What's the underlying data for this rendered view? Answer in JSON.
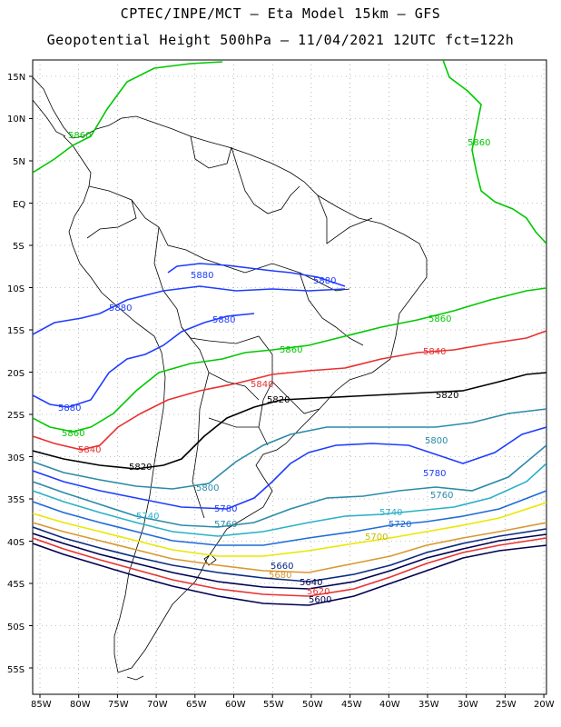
{
  "header": {
    "line1": "CPTEC/INPE/MCT –  Eta Model 15km – GFS",
    "line2": "Geopotential Height 500hPa – 11/04/2021 12UTC fct=122h"
  },
  "map": {
    "lat_labels": [
      "15N",
      "10N",
      "5N",
      "EQ",
      "5S",
      "10S",
      "15S",
      "20S",
      "25S",
      "30S",
      "35S",
      "40S",
      "45S",
      "50S",
      "55S"
    ],
    "lon_labels": [
      "85W",
      "80W",
      "75W",
      "70W",
      "65W",
      "60W",
      "55W",
      "50W",
      "45W",
      "40W",
      "35W",
      "30W",
      "25W",
      "20W"
    ],
    "grid": "dotted",
    "contour_colors": {
      "5880": "#1e3cff",
      "5860": "#00c800",
      "5840": "#e83030",
      "5820": "#000000",
      "5800": "#2a8aa8",
      "5780": "#1e3cff",
      "5760": "#2a8aa8",
      "5740": "#2ab0c8",
      "5720": "#1e6ad8",
      "5700": "#e8e800",
      "5680": "#d89830",
      "5660": "#0a2a80",
      "5640": "#000050",
      "5620": "#e83030",
      "5600": "#000050"
    },
    "contour_labels": [
      {
        "text": "5860",
        "value": 5860
      },
      {
        "text": "5860",
        "value": 5860
      },
      {
        "text": "5880",
        "value": 5880
      },
      {
        "text": "5880",
        "value": 5880
      },
      {
        "text": "5880",
        "value": 5880
      },
      {
        "text": "5880",
        "value": 5880
      },
      {
        "text": "5880",
        "value": 5880
      },
      {
        "text": "5860",
        "value": 5860
      },
      {
        "text": "5860",
        "value": 5860
      },
      {
        "text": "5860",
        "value": 5860
      },
      {
        "text": "5840",
        "value": 5840
      },
      {
        "text": "5840",
        "value": 5840
      },
      {
        "text": "5840",
        "value": 5840
      },
      {
        "text": "5820",
        "value": 5820
      },
      {
        "text": "5820",
        "value": 5820
      },
      {
        "text": "5820",
        "value": 5820
      },
      {
        "text": "5800",
        "value": 5800
      },
      {
        "text": "5800",
        "value": 5800
      },
      {
        "text": "5780",
        "value": 5780
      },
      {
        "text": "5780",
        "value": 5780
      },
      {
        "text": "5760",
        "value": 5760
      },
      {
        "text": "5760",
        "value": 5760
      },
      {
        "text": "5740",
        "value": 5740
      },
      {
        "text": "5740",
        "value": 5740
      },
      {
        "text": "5720",
        "value": 5720
      },
      {
        "text": "5700",
        "value": 5700
      },
      {
        "text": "5680",
        "value": 5680
      },
      {
        "text": "5660",
        "value": 5660
      },
      {
        "text": "5640",
        "value": 5640
      },
      {
        "text": "5620",
        "value": 5620
      },
      {
        "text": "5600",
        "value": 5600
      }
    ]
  }
}
